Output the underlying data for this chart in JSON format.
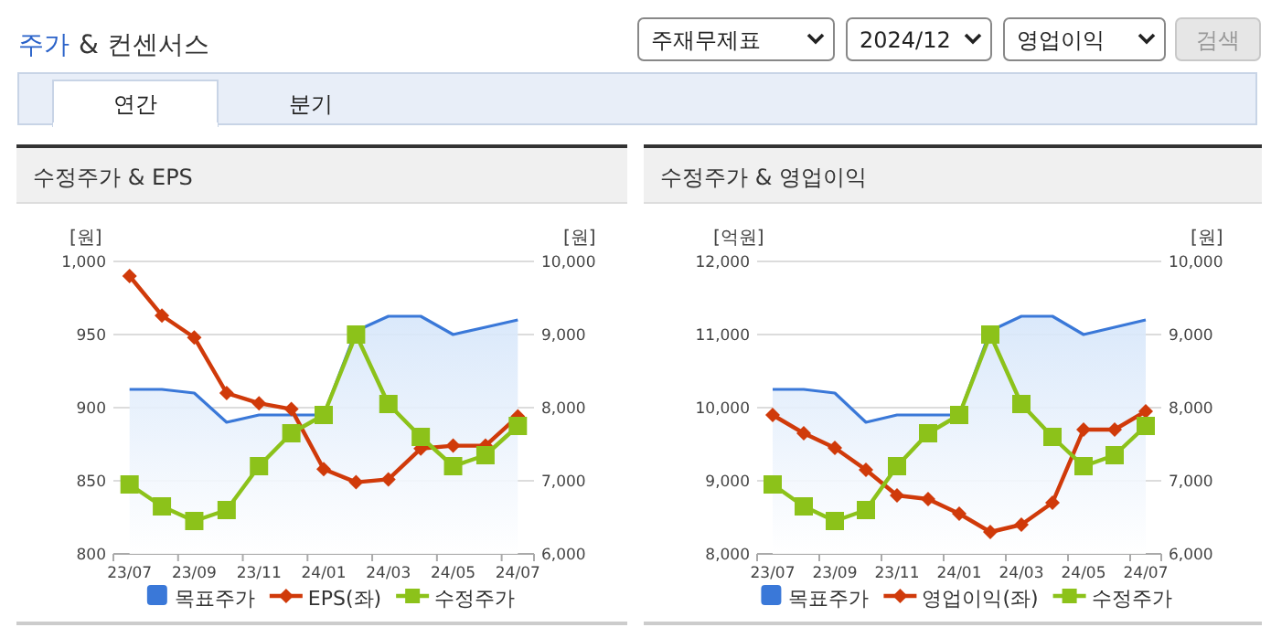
{
  "chart_data": [
    {
      "type": "line",
      "title": "수정주가 & EPS",
      "ylabel": "[원]",
      "y2label": "[원]",
      "annotations": [
        "주가",
        "& 컨센서스",
        "주재무제표",
        "2024/12",
        "영업이익",
        "검색",
        "연간",
        "분기"
      ],
      "categories": [
        "23/07",
        null,
        "23/09",
        null,
        "23/11",
        null,
        "24/01",
        null,
        "24/03",
        null,
        "24/05",
        null,
        "24/07"
      ],
      "series": [
        {
          "name": "목표주가",
          "type": "area",
          "axis": "y2",
          "color": "#3a78d8",
          "values": [
            8250,
            8250,
            8200,
            7800,
            7900,
            7900,
            7900,
            9050,
            9250,
            9250,
            9000,
            9100,
            9200
          ]
        },
        {
          "name": "EPS(좌)",
          "marker": "diamond",
          "color": "#d03a0a",
          "values": [
            990,
            963,
            948,
            910,
            903,
            899,
            858,
            849,
            851,
            872,
            874,
            874,
            894
          ]
        },
        {
          "name": "수정주가",
          "type": "line",
          "axis": "y2",
          "marker": "square",
          "color": "#8cc21a",
          "values": [
            6950,
            6650,
            6450,
            6600,
            7200,
            7650,
            7900,
            9000,
            8050,
            7600,
            7200,
            7350,
            7750
          ]
        }
      ],
      "ylim": [
        800,
        1000
      ],
      "yticks": [
        800,
        850,
        900,
        950,
        {
          "value": 1000,
          "label": "1,000"
        }
      ],
      "y2lim": [
        6000,
        10000
      ],
      "y2ticks": [
        {
          "value": 6000,
          "label": "6,000"
        },
        {
          "value": 7000,
          "label": "7,000"
        },
        {
          "value": 8000,
          "label": "8,000"
        },
        {
          "value": 9000,
          "label": "9,000"
        },
        {
          "value": 10000,
          "label": "10,000"
        }
      ],
      "grid": "y",
      "legend": "bottom"
    },
    {
      "type": "line",
      "title": "수정주가 & 영업이익",
      "ylabel": "[억원]",
      "y2label": "[원]",
      "categories": [
        "23/07",
        null,
        "23/09",
        null,
        "23/11",
        null,
        "24/01",
        null,
        "24/03",
        null,
        "24/05",
        null,
        "24/07"
      ],
      "series": [
        {
          "name": "목표주가",
          "type": "area",
          "axis": "y2",
          "color": "#3a78d8",
          "values": [
            8250,
            8250,
            8200,
            7800,
            7900,
            7900,
            7900,
            9050,
            9250,
            9250,
            9000,
            9100,
            9200
          ]
        },
        {
          "name": "영업이익(좌)",
          "marker": "diamond",
          "color": "#d03a0a",
          "values": [
            9900,
            9650,
            9450,
            9150,
            8800,
            8750,
            8550,
            8300,
            8400,
            8700,
            9700,
            9700,
            9950
          ]
        },
        {
          "name": "수정주가",
          "type": "line",
          "axis": "y2",
          "marker": "square",
          "color": "#8cc21a",
          "values": [
            6950,
            6650,
            6450,
            6600,
            7200,
            7650,
            7900,
            9000,
            8050,
            7600,
            7200,
            7350,
            7750
          ]
        }
      ],
      "ylim": [
        8000,
        12000
      ],
      "yticks": [
        {
          "value": 8000,
          "label": "8,000"
        },
        {
          "value": 9000,
          "label": "9,000"
        },
        {
          "value": 10000,
          "label": "10,000"
        },
        {
          "value": 11000,
          "label": "11,000"
        },
        {
          "value": 12000,
          "label": "12,000"
        }
      ],
      "y2lim": [
        6000,
        10000
      ],
      "y2ticks": [
        {
          "value": 6000,
          "label": "6,000"
        },
        {
          "value": 7000,
          "label": "7,000"
        },
        {
          "value": 8000,
          "label": "8,000"
        },
        {
          "value": 9000,
          "label": "9,000"
        },
        {
          "value": 10000,
          "label": "10,000"
        }
      ],
      "grid": "y",
      "legend": "bottom"
    }
  ]
}
